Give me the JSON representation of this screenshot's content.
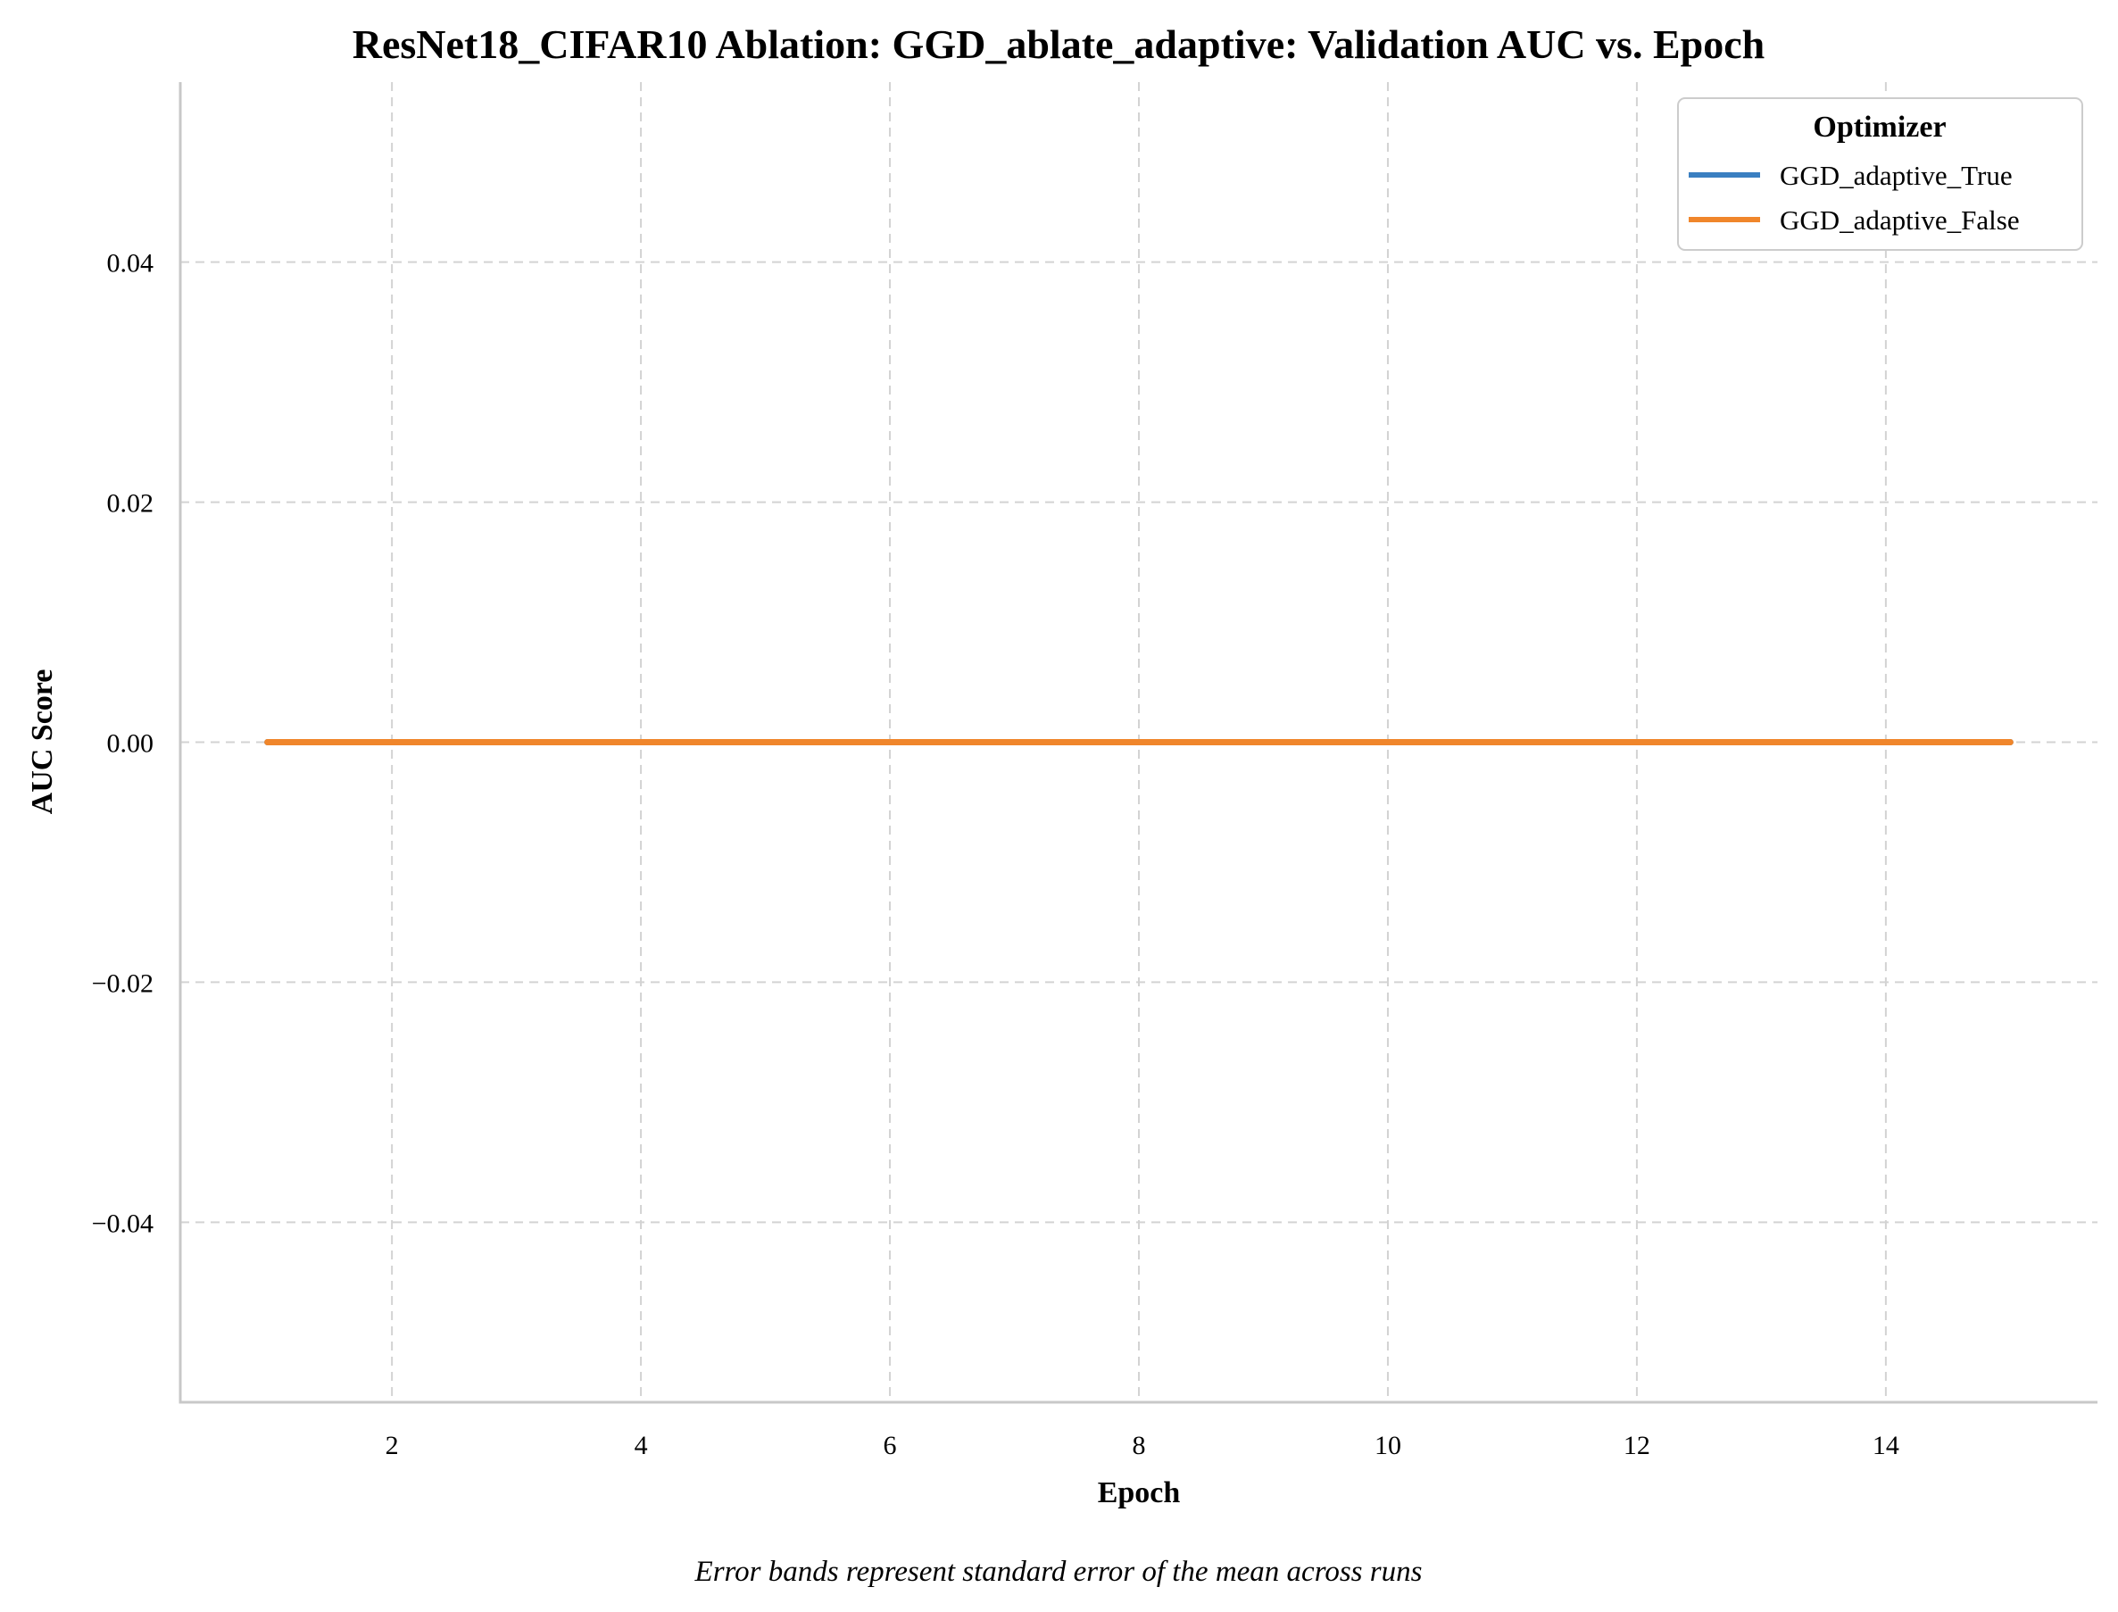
{
  "chart_data": {
    "type": "line",
    "title": "ResNet18_CIFAR10 Ablation: GGD_ablate_adaptive: Validation AUC vs. Epoch",
    "xlabel": "Epoch",
    "ylabel": "AUC Score",
    "xlim": [
      0.3,
      15.7
    ],
    "ylim": [
      -0.055,
      0.055
    ],
    "x_ticks": [
      2,
      4,
      6,
      8,
      10,
      12,
      14
    ],
    "y_ticks": [
      0.04,
      0.02,
      0.0,
      -0.02,
      -0.04
    ],
    "y_tick_labels": [
      "0.04",
      "0.02",
      "0.00",
      "−0.02",
      "−0.04"
    ],
    "grid": true,
    "legend": {
      "title": "Optimizer",
      "placement": "top-right"
    },
    "x": [
      1,
      2,
      3,
      4,
      5,
      6,
      7,
      8,
      9,
      10,
      11,
      12,
      13,
      14,
      15
    ],
    "series": [
      {
        "name": "GGD_adaptive_True",
        "color": "#3a7fc1",
        "values": [
          0,
          0,
          0,
          0,
          0,
          0,
          0,
          0,
          0,
          0,
          0,
          0,
          0,
          0,
          0
        ]
      },
      {
        "name": "GGD_adaptive_False",
        "color": "#f0862b",
        "values": [
          0,
          0,
          0,
          0,
          0,
          0,
          0,
          0,
          0,
          0,
          0,
          0,
          0,
          0,
          0
        ]
      }
    ],
    "caption": "Error bands represent standard error of the mean across runs"
  }
}
